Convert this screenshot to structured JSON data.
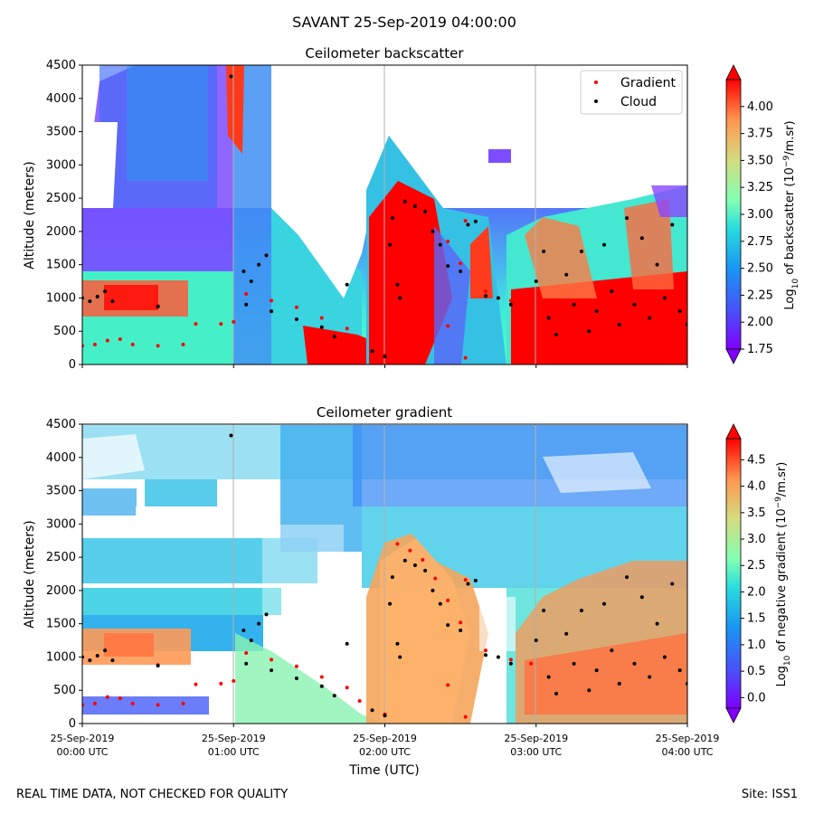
{
  "suptitle": "SAVANT 25-Sep-2019 04:00:00",
  "footer_left": "REAL TIME DATA, NOT CHECKED FOR QUALITY",
  "footer_right": "Site: ISS1",
  "chart_data": [
    {
      "type": "heatmap",
      "title": "Ceilometer backscatter",
      "xlabel": "",
      "ylabel": "Altitude (meters)",
      "ylim": [
        0,
        4500
      ],
      "yticks": [
        0,
        500,
        1000,
        1500,
        2000,
        2500,
        3000,
        3500,
        4000,
        4500
      ],
      "xticks": [
        "25-Sep-2019 00:00 UTC",
        "25-Sep-2019 01:00 UTC",
        "25-Sep-2019 02:00 UTC",
        "25-Sep-2019 03:00 UTC",
        "25-Sep-2019 04:00 UTC"
      ],
      "x_tick_labels_shown": false,
      "grid": "vertical at hour ticks",
      "colormap": "rainbow",
      "colorbar": {
        "label_prefix": "Log",
        "label_sub": "10",
        "label_mid": " of backscatter (10",
        "label_sup": "−9",
        "label_suffix": "/m.sr)",
        "range": [
          1.75,
          4.25
        ],
        "ticks": [
          "1.75",
          "2.00",
          "2.25",
          "2.50",
          "2.75",
          "3.00",
          "3.25",
          "3.50",
          "3.75",
          "4.00"
        ],
        "extend": "both"
      },
      "legend": {
        "placement": "top-right",
        "entries": [
          {
            "name": "Gradient",
            "color": "#ff0000"
          },
          {
            "name": "Cloud",
            "color": "#000000"
          }
        ]
      },
      "gradient_points": [
        [
          "00:00",
          280
        ],
        [
          "00:05",
          300
        ],
        [
          "00:10",
          360
        ],
        [
          "00:15",
          380
        ],
        [
          "00:20",
          300
        ],
        [
          "00:30",
          280
        ],
        [
          "00:40",
          300
        ],
        [
          "00:30",
          880
        ],
        [
          "00:45",
          610
        ],
        [
          "00:55",
          610
        ],
        [
          "01:00",
          640
        ],
        [
          "01:05",
          1060
        ],
        [
          "01:15",
          960
        ],
        [
          "01:25",
          860
        ],
        [
          "01:35",
          700
        ],
        [
          "01:45",
          540
        ],
        [
          "01:50",
          340
        ],
        [
          "02:00",
          140
        ],
        [
          "02:05",
          2700
        ],
        [
          "02:10",
          2600
        ],
        [
          "02:15",
          2460
        ],
        [
          "02:20",
          2180
        ],
        [
          "02:25",
          1850
        ],
        [
          "02:30",
          1520
        ],
        [
          "02:32",
          2160
        ],
        [
          "02:25",
          580
        ],
        [
          "02:32",
          100
        ],
        [
          "02:40",
          1100
        ],
        [
          "02:50",
          960
        ],
        [
          "02:58",
          900
        ]
      ],
      "cloud_points": [
        [
          "00:00",
          1000
        ],
        [
          "00:03",
          950
        ],
        [
          "00:06",
          1020
        ],
        [
          "00:09",
          1100
        ],
        [
          "00:12",
          950
        ],
        [
          "00:30",
          870
        ],
        [
          "00:59",
          4330
        ],
        [
          "01:04",
          1400
        ],
        [
          "01:07",
          1250
        ],
        [
          "01:10",
          1500
        ],
        [
          "01:13",
          1640
        ],
        [
          "01:05",
          900
        ],
        [
          "01:15",
          800
        ],
        [
          "01:25",
          680
        ],
        [
          "01:35",
          560
        ],
        [
          "01:40",
          420
        ],
        [
          "01:45",
          1200
        ],
        [
          "01:55",
          200
        ],
        [
          "02:00",
          120
        ],
        [
          "02:02",
          1800
        ],
        [
          "02:03",
          2200
        ],
        [
          "02:05",
          1200
        ],
        [
          "02:06",
          1000
        ],
        [
          "02:08",
          2450
        ],
        [
          "02:12",
          2380
        ],
        [
          "02:16",
          2300
        ],
        [
          "02:19",
          2000
        ],
        [
          "02:22",
          1800
        ],
        [
          "02:25",
          1480
        ],
        [
          "02:30",
          1400
        ],
        [
          "02:33",
          2100
        ],
        [
          "02:36",
          2150
        ],
        [
          "02:40",
          1030
        ],
        [
          "02:45",
          1000
        ],
        [
          "02:50",
          900
        ],
        [
          "03:00",
          1250
        ],
        [
          "03:03",
          1700
        ],
        [
          "03:05",
          700
        ],
        [
          "03:08",
          450
        ],
        [
          "03:12",
          1350
        ],
        [
          "03:15",
          900
        ],
        [
          "03:18",
          1700
        ],
        [
          "03:21",
          500
        ],
        [
          "03:24",
          800
        ],
        [
          "03:27",
          1800
        ],
        [
          "03:30",
          1100
        ],
        [
          "03:33",
          600
        ],
        [
          "03:36",
          2200
        ],
        [
          "03:39",
          900
        ],
        [
          "03:42",
          1900
        ],
        [
          "03:45",
          700
        ],
        [
          "03:48",
          1500
        ],
        [
          "03:51",
          1000
        ],
        [
          "03:54",
          2100
        ],
        [
          "03:57",
          800
        ],
        [
          "04:00",
          600
        ]
      ]
    },
    {
      "type": "heatmap",
      "title": "Ceilometer gradient",
      "xlabel": "Time (UTC)",
      "ylabel": "Altitude (meters)",
      "ylim": [
        0,
        4500
      ],
      "yticks": [
        0,
        500,
        1000,
        1500,
        2000,
        2500,
        3000,
        3500,
        4000,
        4500
      ],
      "xticks": [
        "25-Sep-2019 00:00 UTC",
        "25-Sep-2019 01:00 UTC",
        "25-Sep-2019 02:00 UTC",
        "25-Sep-2019 03:00 UTC",
        "25-Sep-2019 04:00 UTC"
      ],
      "xtick_labels": [
        {
          "date": "25-Sep-2019",
          "time": "00:00 UTC"
        },
        {
          "date": "25-Sep-2019",
          "time": "01:00 UTC"
        },
        {
          "date": "25-Sep-2019",
          "time": "02:00 UTC"
        },
        {
          "date": "25-Sep-2019",
          "time": "03:00 UTC"
        },
        {
          "date": "25-Sep-2019",
          "time": "04:00 UTC"
        }
      ],
      "grid": "vertical at hour ticks",
      "colormap": "rainbow",
      "colorbar": {
        "label_prefix": "Log",
        "label_sub": "10",
        "label_mid": " of negative gradient (10",
        "label_sup": "−9",
        "label_suffix": "/m.sr)",
        "range": [
          -0.2,
          4.9
        ],
        "ticks": [
          "0.0",
          "0.5",
          "1.0",
          "1.5",
          "2.0",
          "2.5",
          "3.0",
          "3.5",
          "4.0",
          "4.5"
        ],
        "extend": "both"
      },
      "cloud_points": [
        [
          "00:00",
          1000
        ],
        [
          "00:03",
          950
        ],
        [
          "00:06",
          1020
        ],
        [
          "00:09",
          1100
        ],
        [
          "00:12",
          950
        ],
        [
          "00:30",
          870
        ],
        [
          "00:59",
          4330
        ],
        [
          "01:04",
          1400
        ],
        [
          "01:07",
          1250
        ],
        [
          "01:10",
          1500
        ],
        [
          "01:13",
          1640
        ],
        [
          "01:05",
          900
        ],
        [
          "01:15",
          800
        ],
        [
          "01:25",
          680
        ],
        [
          "01:35",
          560
        ],
        [
          "01:40",
          420
        ],
        [
          "01:45",
          1200
        ],
        [
          "01:55",
          200
        ],
        [
          "02:00",
          120
        ],
        [
          "02:02",
          1800
        ],
        [
          "02:03",
          2200
        ],
        [
          "02:05",
          1200
        ],
        [
          "02:06",
          1000
        ],
        [
          "02:08",
          2450
        ],
        [
          "02:12",
          2380
        ],
        [
          "02:16",
          2300
        ],
        [
          "02:19",
          2000
        ],
        [
          "02:22",
          1800
        ],
        [
          "02:25",
          1480
        ],
        [
          "02:30",
          1400
        ],
        [
          "02:33",
          2100
        ],
        [
          "02:36",
          2150
        ],
        [
          "02:40",
          1030
        ],
        [
          "02:45",
          1000
        ],
        [
          "02:50",
          900
        ],
        [
          "03:00",
          1250
        ],
        [
          "03:03",
          1700
        ],
        [
          "03:05",
          700
        ],
        [
          "03:08",
          450
        ],
        [
          "03:12",
          1350
        ],
        [
          "03:15",
          900
        ],
        [
          "03:18",
          1700
        ],
        [
          "03:21",
          500
        ],
        [
          "03:24",
          800
        ],
        [
          "03:27",
          1800
        ],
        [
          "03:30",
          1100
        ],
        [
          "03:33",
          600
        ],
        [
          "03:36",
          2200
        ],
        [
          "03:39",
          900
        ],
        [
          "03:42",
          1900
        ],
        [
          "03:45",
          700
        ],
        [
          "03:48",
          1500
        ],
        [
          "03:51",
          1000
        ],
        [
          "03:54",
          2100
        ],
        [
          "03:57",
          800
        ],
        [
          "04:00",
          600
        ]
      ],
      "gradient_points": [
        [
          "00:00",
          280
        ],
        [
          "00:05",
          300
        ],
        [
          "00:10",
          400
        ],
        [
          "00:15",
          380
        ],
        [
          "00:20",
          300
        ],
        [
          "00:30",
          280
        ],
        [
          "00:40",
          300
        ],
        [
          "00:30",
          880
        ],
        [
          "00:45",
          590
        ],
        [
          "00:55",
          600
        ],
        [
          "01:00",
          640
        ],
        [
          "01:05",
          1060
        ],
        [
          "01:15",
          960
        ],
        [
          "01:25",
          860
        ],
        [
          "01:35",
          700
        ],
        [
          "01:45",
          540
        ],
        [
          "01:50",
          340
        ],
        [
          "02:00",
          140
        ],
        [
          "02:05",
          2700
        ],
        [
          "02:10",
          2600
        ],
        [
          "02:15",
          2460
        ],
        [
          "02:20",
          2180
        ],
        [
          "02:25",
          1850
        ],
        [
          "02:30",
          1520
        ],
        [
          "02:32",
          2160
        ],
        [
          "02:25",
          580
        ],
        [
          "02:32",
          100
        ],
        [
          "02:40",
          1100
        ],
        [
          "02:50",
          960
        ],
        [
          "02:58",
          900
        ]
      ]
    }
  ]
}
